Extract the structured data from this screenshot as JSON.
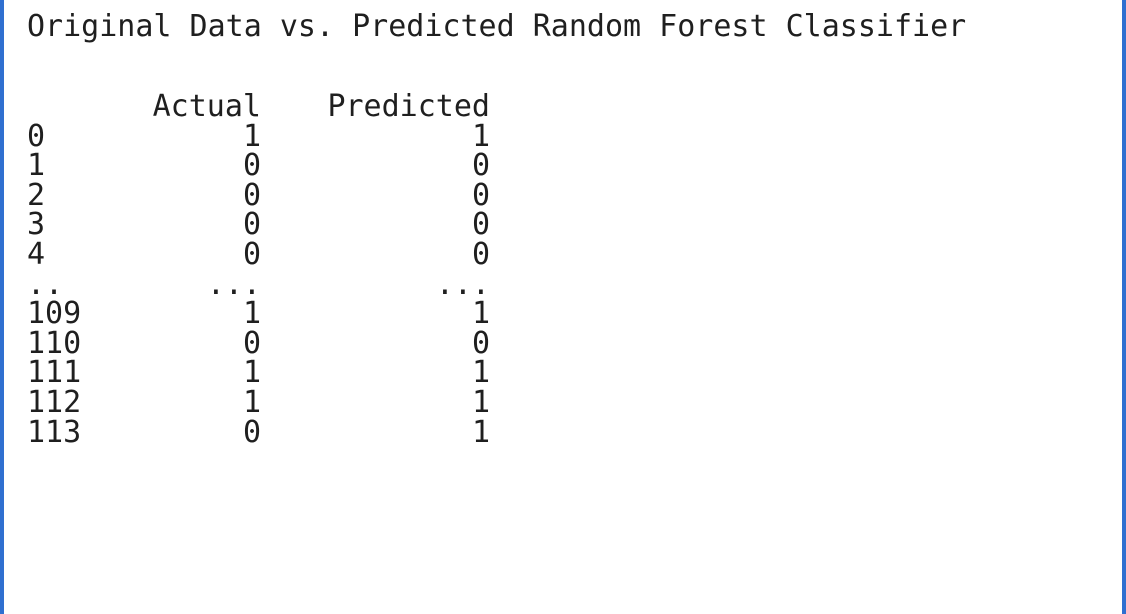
{
  "output": {
    "title": "Original Data vs. Predicted Random Forest Classifier",
    "columns": [
      "Actual",
      "Predicted"
    ],
    "rows": [
      {
        "index": "0",
        "actual": "1",
        "predicted": "1"
      },
      {
        "index": "1",
        "actual": "0",
        "predicted": "0"
      },
      {
        "index": "2",
        "actual": "0",
        "predicted": "0"
      },
      {
        "index": "3",
        "actual": "0",
        "predicted": "0"
      },
      {
        "index": "4",
        "actual": "0",
        "predicted": "0"
      },
      {
        "index": "..",
        "actual": "...",
        "predicted": "..."
      },
      {
        "index": "109",
        "actual": "1",
        "predicted": "1"
      },
      {
        "index": "110",
        "actual": "0",
        "predicted": "0"
      },
      {
        "index": "111",
        "actual": "1",
        "predicted": "1"
      },
      {
        "index": "112",
        "actual": "1",
        "predicted": "1"
      },
      {
        "index": "113",
        "actual": "0",
        "predicted": "1"
      }
    ]
  }
}
